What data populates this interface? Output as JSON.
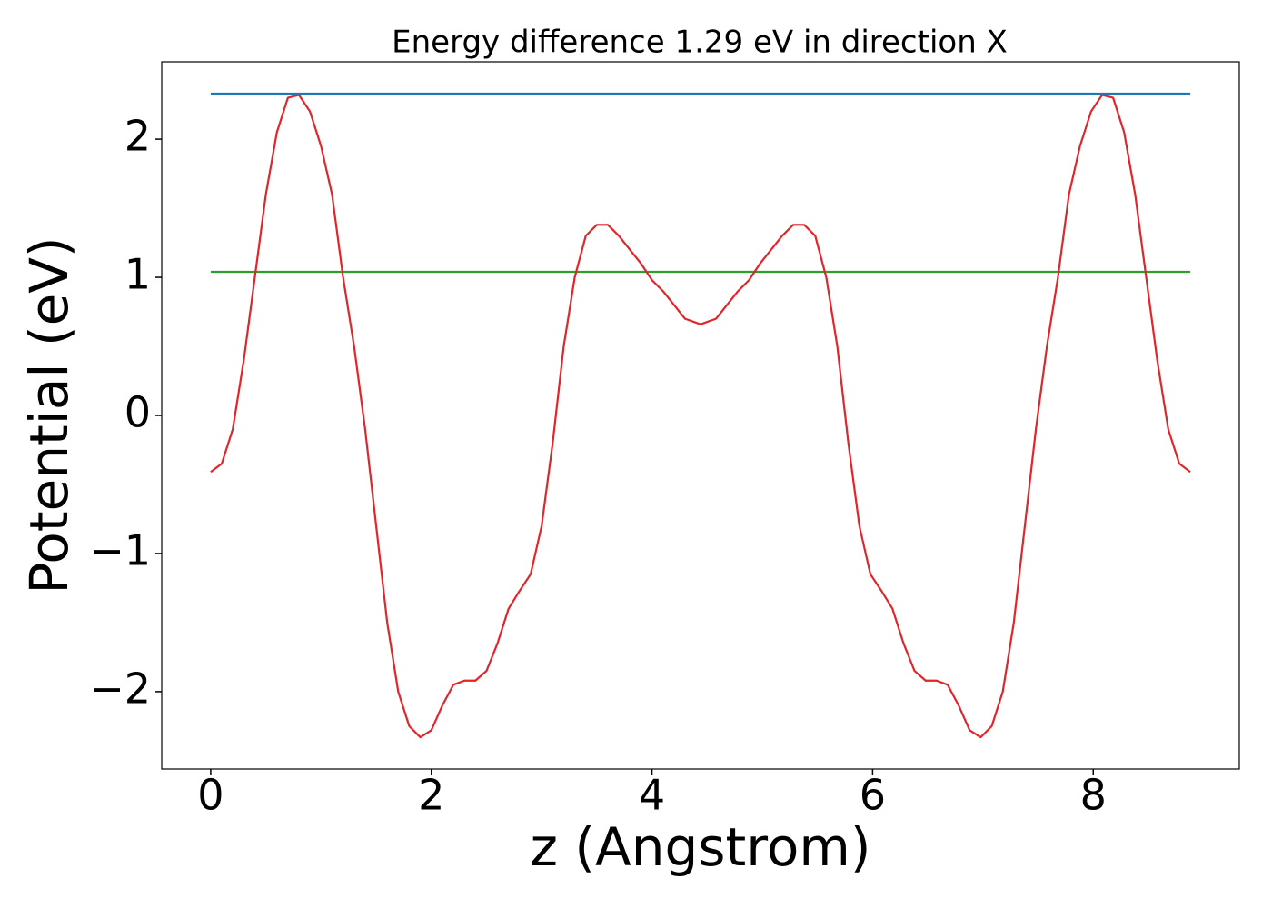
{
  "chart_data": {
    "type": "line",
    "title": "Energy difference 1.29 eV in direction X",
    "x_label": "z (Angstrom)",
    "y_label": "Potential (eV)",
    "xlim": [
      -0.444,
      9.324
    ],
    "ylim": [
      -2.56,
      2.56
    ],
    "xticks": [
      0,
      2,
      4,
      6,
      8
    ],
    "yticks": [
      {
        "value": -2,
        "label": "−2"
      },
      {
        "value": -1,
        "label": "−1"
      },
      0,
      1,
      2
    ],
    "grid": false,
    "series": [
      {
        "color": "#1f77b4",
        "x": [
          0,
          8.88
        ],
        "values": [
          2.33,
          2.33
        ]
      },
      {
        "color": "#2ca02c",
        "x": [
          0,
          8.88
        ],
        "values": [
          1.04,
          1.04
        ]
      },
      {
        "color": "#e0262a",
        "x": [
          0,
          0.1,
          0.2,
          0.3,
          0.4,
          0.5,
          0.6,
          0.7,
          0.8,
          0.9,
          1.0,
          1.1,
          1.2,
          1.3,
          1.4,
          1.5,
          1.6,
          1.7,
          1.8,
          1.9,
          2.0,
          2.1,
          2.2,
          2.3,
          2.4,
          2.5,
          2.6,
          2.7,
          2.8,
          2.9,
          3.0,
          3.1,
          3.2,
          3.3,
          3.4,
          3.5,
          3.6,
          3.7,
          3.8,
          3.9,
          4.0,
          4.1,
          4.2,
          4.3,
          4.44,
          4.58,
          4.68,
          4.78,
          4.88,
          4.98,
          5.08,
          5.18,
          5.28,
          5.38,
          5.48,
          5.58,
          5.68,
          5.78,
          5.88,
          5.98,
          6.08,
          6.18,
          6.28,
          6.38,
          6.48,
          6.58,
          6.68,
          6.78,
          6.88,
          6.98,
          7.08,
          7.18,
          7.28,
          7.38,
          7.48,
          7.58,
          7.68,
          7.78,
          7.88,
          7.98,
          8.08,
          8.18,
          8.28,
          8.38,
          8.48,
          8.58,
          8.68,
          8.78,
          8.88
        ],
        "values": [
          -0.41,
          -0.35,
          -0.1,
          0.4,
          1.0,
          1.6,
          2.05,
          2.3,
          2.32,
          2.2,
          1.95,
          1.6,
          1.0,
          0.5,
          -0.1,
          -0.8,
          -1.5,
          -2.0,
          -2.25,
          -2.33,
          -2.28,
          -2.1,
          -1.95,
          -1.92,
          -1.92,
          -1.85,
          -1.65,
          -1.4,
          -1.27,
          -1.15,
          -0.8,
          -0.2,
          0.5,
          1.0,
          1.3,
          1.38,
          1.38,
          1.3,
          1.2,
          1.1,
          0.98,
          0.9,
          0.8,
          0.7,
          0.66,
          0.7,
          0.8,
          0.9,
          0.98,
          1.1,
          1.2,
          1.3,
          1.38,
          1.38,
          1.3,
          1.0,
          0.5,
          -0.2,
          -0.8,
          -1.15,
          -1.27,
          -1.4,
          -1.65,
          -1.85,
          -1.92,
          -1.92,
          -1.95,
          -2.1,
          -2.28,
          -2.33,
          -2.25,
          -2.0,
          -1.5,
          -0.8,
          -0.1,
          0.5,
          1.0,
          1.6,
          1.95,
          2.2,
          2.32,
          2.3,
          2.05,
          1.6,
          1.0,
          0.4,
          -0.1,
          -0.35,
          -0.41
        ]
      }
    ]
  }
}
